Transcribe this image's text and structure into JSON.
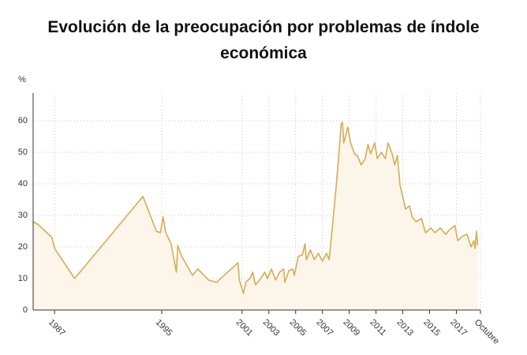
{
  "chart_data": {
    "type": "line",
    "title": "Evolución de la preocupación por problemas de índole económica",
    "y_label": "%",
    "color": "#d6ac55",
    "area_color": "#fbf5ea",
    "grid": true,
    "xlim": [
      1985.4,
      2018.8
    ],
    "xticks": [
      1987,
      1995,
      2001,
      2003,
      2005,
      2007,
      2009,
      2011,
      2013,
      2015,
      2017,
      {
        "value": 2018.8,
        "label": "Octubre"
      }
    ],
    "ylim": [
      0,
      70
    ],
    "yticks": [
      0,
      10,
      20,
      30,
      40,
      50,
      60
    ],
    "x": [
      1985.4,
      1985.8,
      1986.8,
      1987.0,
      1988.5,
      1993.6,
      1994.6,
      1994.9,
      1995.1,
      1995.3,
      1995.7,
      1996.1,
      1996.2,
      1996.5,
      1997.3,
      1997.7,
      1998.5,
      1999.1,
      2000.7,
      2000.8,
      2001.1,
      2001.3,
      2001.6,
      2001.8,
      2002.0,
      2002.3,
      2002.7,
      2002.9,
      2003.2,
      2003.5,
      2003.8,
      2004.1,
      2004.2,
      2004.5,
      2004.8,
      2004.9,
      2005.2,
      2005.5,
      2005.7,
      2005.8,
      2006.1,
      2006.4,
      2006.7,
      2007.0,
      2007.3,
      2007.5,
      2007.7,
      2008.0,
      2008.2,
      2008.4,
      2008.5,
      2008.6,
      2008.9,
      2009.1,
      2009.4,
      2009.6,
      2009.9,
      2010.2,
      2010.4,
      2010.6,
      2010.9,
      2011.1,
      2011.4,
      2011.7,
      2011.9,
      2012.2,
      2012.4,
      2012.6,
      2012.8,
      2013.0,
      2013.2,
      2013.5,
      2013.7,
      2014.0,
      2014.4,
      2014.7,
      2015.1,
      2015.4,
      2015.8,
      2016.2,
      2016.5,
      2016.9,
      2017.1,
      2017.5,
      2017.8,
      2018.1,
      2018.3,
      2018.4,
      2018.5,
      2018.6
    ],
    "values": [
      28,
      27,
      23,
      19.5,
      10,
      36,
      25,
      24.5,
      29.5,
      24.5,
      21,
      12,
      20.5,
      17,
      11,
      13,
      9.5,
      8.8,
      15,
      9.5,
      5.3,
      9,
      10,
      12,
      8,
      9.5,
      12,
      10,
      13,
      9.5,
      12,
      13,
      8.8,
      12.5,
      13,
      11,
      17,
      17.5,
      21,
      16,
      19,
      16,
      18,
      15.5,
      18,
      16,
      24.5,
      38,
      48,
      59,
      59.5,
      53,
      58,
      53,
      49.5,
      49,
      46,
      48,
      52.5,
      49.5,
      53,
      48,
      50,
      48,
      53,
      49.5,
      46,
      49,
      39.5,
      36,
      32,
      33,
      29.5,
      28,
      29,
      24.5,
      26,
      24.5,
      26,
      24,
      25.5,
      26.8,
      22,
      23.5,
      24,
      20,
      22,
      19.5,
      25,
      20.5
    ]
  }
}
